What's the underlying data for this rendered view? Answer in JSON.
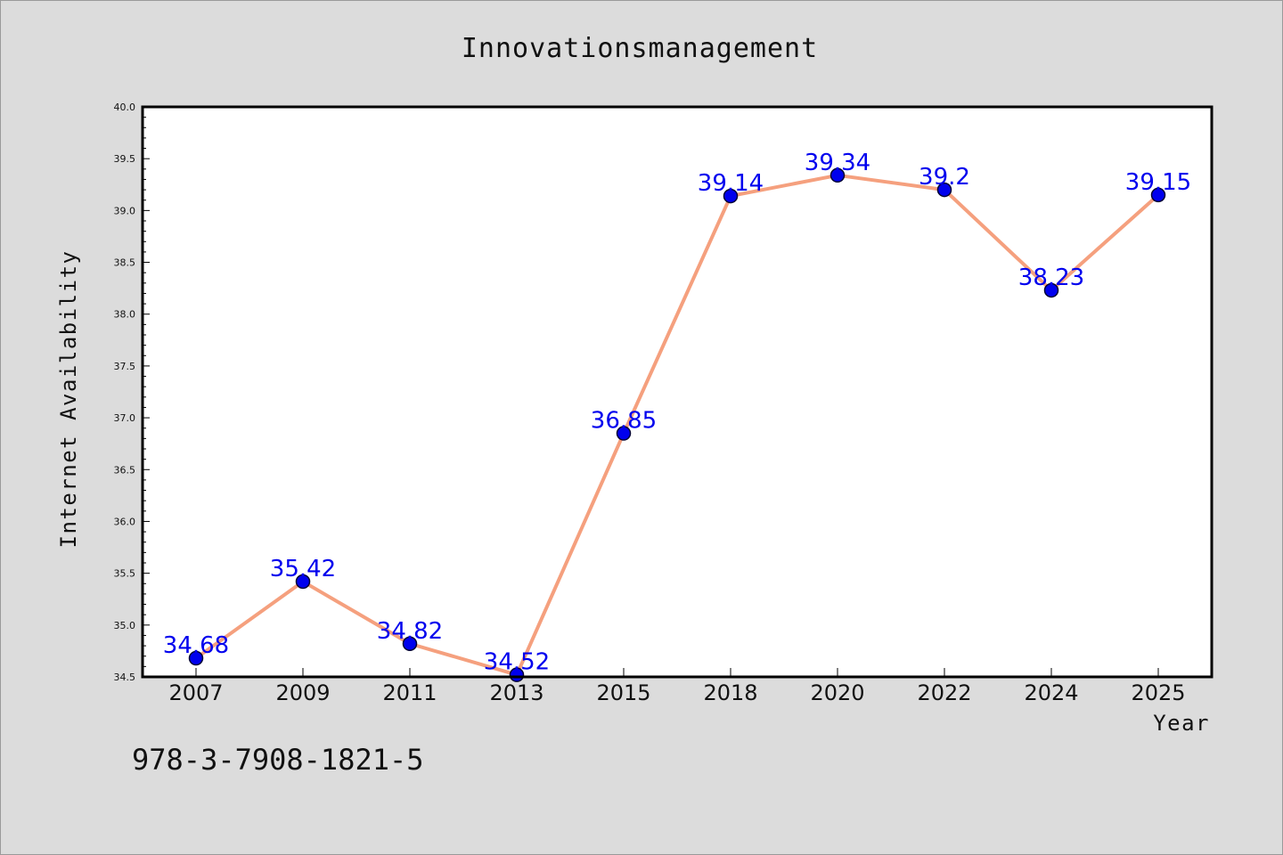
{
  "chart_data": {
    "type": "line",
    "title": "Innovationsmanagement",
    "xlabel": "Year",
    "ylabel": "Internet Availability",
    "categories": [
      "2007",
      "2009",
      "2011",
      "2013",
      "2015",
      "2018",
      "2020",
      "2022",
      "2024",
      "2025"
    ],
    "series": [
      {
        "values": [
          34.68,
          35.42,
          34.82,
          34.52,
          36.85,
          39.14,
          39.34,
          39.2,
          38.23,
          39.15
        ],
        "data_labels": [
          "34.68",
          "35.42",
          "34.82",
          "34.52",
          "36.85",
          "39.14",
          "39.34",
          "39.2",
          "38.23",
          "39.15"
        ],
        "line_color": "#f5a07e",
        "marker_color": "#0000ee"
      }
    ],
    "ylim": [
      34.5,
      40.0
    ],
    "yticks": [
      "34.5",
      "35.0",
      "35.5",
      "36.0",
      "36.5",
      "37.0",
      "37.5",
      "38.0",
      "38.5",
      "39.0",
      "39.5",
      "40.0"
    ],
    "grid": false,
    "legend": "none"
  },
  "footer_text": "978-3-7908-1821-5",
  "colors": {
    "background": "#dcdcdc",
    "plot_background": "#ffffff",
    "label_color": "#0000ee"
  }
}
